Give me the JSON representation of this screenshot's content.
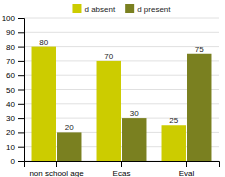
{
  "chart_data": {
    "type": "bar",
    "categories": [
      "non school age",
      "Ecas",
      "Eval"
    ],
    "series": [
      {
        "name": "d absent",
        "color": "#cccc00",
        "values": [
          80,
          70,
          25
        ]
      },
      {
        "name": "d present",
        "color": "#7a8020",
        "values": [
          20,
          30,
          75
        ]
      }
    ],
    "ylim": [
      0,
      100
    ],
    "yticks": [
      0,
      10,
      20,
      30,
      40,
      50,
      60,
      70,
      80,
      90,
      100
    ],
    "grid": true,
    "legend": "top",
    "data_labels": true
  }
}
